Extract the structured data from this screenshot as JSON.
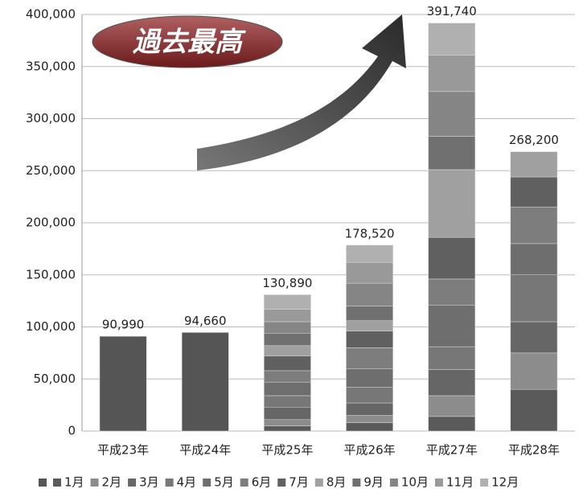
{
  "chart_data": {
    "type": "stacked_bar",
    "annotation": "過去最高",
    "categories": [
      "平成23年",
      "平成24年",
      "平成25年",
      "平成26年",
      "平成27年",
      "平成28年"
    ],
    "series": [
      {
        "name": null,
        "color": "#555555",
        "values": [
          90990,
          94660,
          null,
          null,
          null,
          null
        ]
      },
      {
        "name": "1月",
        "color": "#5a5a5a",
        "values": [
          null,
          null,
          5000,
          8000,
          14000,
          40000
        ]
      },
      {
        "name": "2月",
        "color": "#8c8c8c",
        "values": [
          null,
          null,
          6000,
          7000,
          20000,
          35000
        ]
      },
      {
        "name": "3月",
        "color": "#666666",
        "values": [
          null,
          null,
          12000,
          12000,
          25000,
          30000
        ]
      },
      {
        "name": "4月",
        "color": "#777777",
        "values": [
          null,
          null,
          11000,
          15000,
          22000,
          45000
        ]
      },
      {
        "name": "5月",
        "color": "#6e6e6e",
        "values": [
          null,
          null,
          13000,
          18000,
          40000,
          30000
        ]
      },
      {
        "name": "6月",
        "color": "#7d7d7d",
        "values": [
          null,
          null,
          11000,
          20000,
          25000,
          35000
        ]
      },
      {
        "name": "7月",
        "color": "#606060",
        "values": [
          null,
          null,
          14000,
          16000,
          40000,
          29000
        ]
      },
      {
        "name": "8月",
        "color": "#a0a0a0",
        "values": [
          null,
          null,
          10000,
          10000,
          65000,
          24200
        ]
      },
      {
        "name": "9月",
        "color": "#707070",
        "values": [
          null,
          null,
          12000,
          14000,
          32000,
          null
        ]
      },
      {
        "name": "10月",
        "color": "#858585",
        "values": [
          null,
          null,
          11000,
          22000,
          43000,
          null
        ]
      },
      {
        "name": "11月",
        "color": "#999999",
        "values": [
          null,
          null,
          12000,
          20000,
          35000,
          null
        ]
      },
      {
        "name": "12月",
        "color": "#b0b0b0",
        "values": [
          null,
          null,
          13890,
          16520,
          30740,
          null
        ]
      }
    ],
    "totals": [
      90990,
      94660,
      130890,
      178520,
      391740,
      268200
    ],
    "total_labels": [
      "90,990",
      "94,660",
      "130,890",
      "178,520",
      "391,740",
      "268,200"
    ],
    "ylim": [
      0,
      400000
    ],
    "yticks": [
      0,
      {
        "value": 50000,
        "label": "50,000"
      },
      {
        "value": 100000,
        "label": "100,000"
      },
      {
        "value": 150000,
        "label": "150,000"
      },
      {
        "value": 200000,
        "label": "200,000"
      },
      {
        "value": 250000,
        "label": "250,000"
      },
      {
        "value": 300000,
        "label": "300,000"
      },
      {
        "value": 350000,
        "label": "350,000"
      },
      {
        "value": 400000,
        "label": "400,000"
      }
    ],
    "grid": true
  }
}
